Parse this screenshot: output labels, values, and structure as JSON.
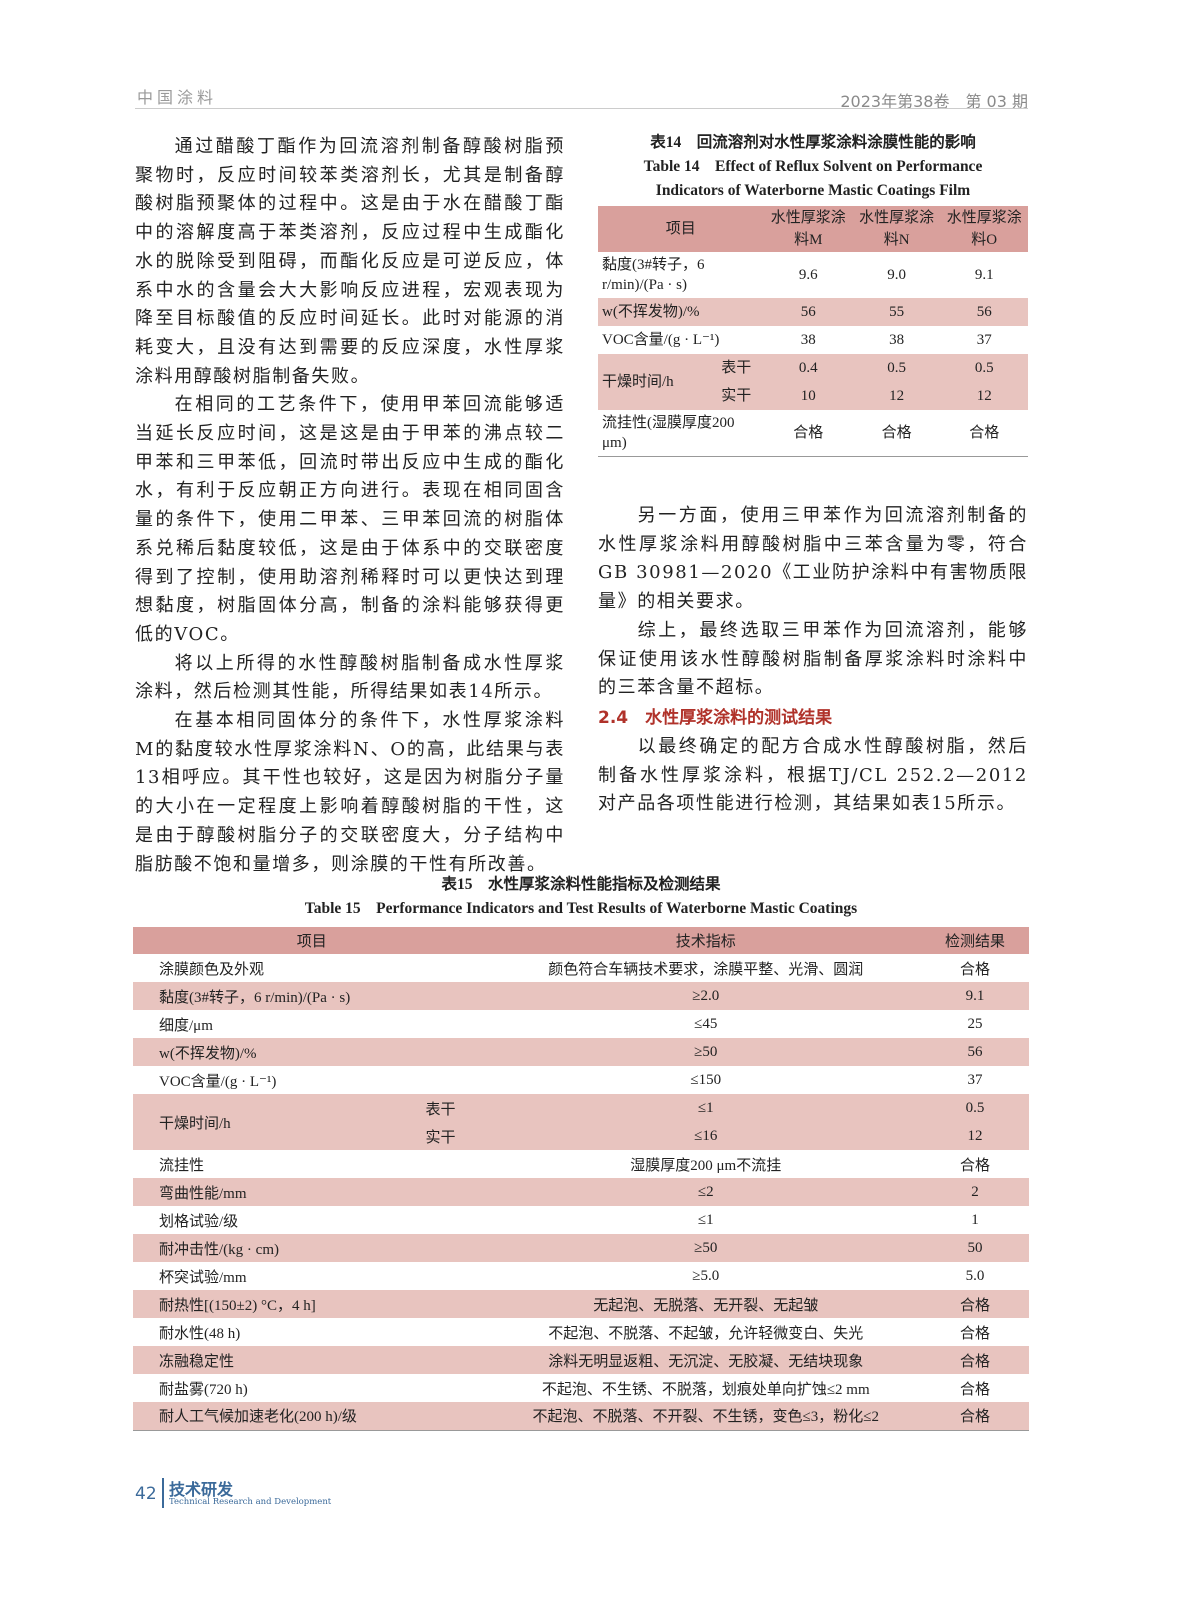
{
  "header": {
    "journal": "中国涂料",
    "issue": "2023年第38卷　第 03 期"
  },
  "left_column": [
    "通过醋酸丁酯作为回流溶剂制备醇酸树脂预聚物时，反应时间较苯类溶剂长，尤其是制备醇酸树脂预聚体的过程中。这是由于水在醋酸丁酯中的溶解度高于苯类溶剂，反应过程中生成酯化水的脱除受到阻碍，而酯化反应是可逆反应，体系中水的含量会大大影响反应进程，宏观表现为降至目标酸值的反应时间延长。此时对能源的消耗变大，且没有达到需要的反应深度，水性厚浆涂料用醇酸树脂制备失败。",
    "在相同的工艺条件下，使用甲苯回流能够适当延长反应时间，这是这是由于甲苯的沸点较二甲苯和三甲苯低，回流时带出反应中生成的酯化水，有利于反应朝正方向进行。表现在相同固含量的条件下，使用二甲苯、三甲苯回流的树脂体系兑稀后黏度较低，这是由于体系中的交联密度得到了控制，使用助溶剂稀释时可以更快达到理想黏度，树脂固体分高，制备的涂料能够获得更低的VOC。",
    "将以上所得的水性醇酸树脂制备成水性厚浆涂料，然后检测其性能，所得结果如表14所示。",
    "在基本相同固体分的条件下，水性厚浆涂料M的黏度较水性厚浆涂料N、O的高，此结果与表13相呼应。其干性也较好，这是因为树脂分子量的大小在一定程度上影响着醇酸树脂的干性，这是由于醇酸树脂分子的交联密度大，分子结构中脂肪酸不饱和量增多，则涂膜的干性有所改善。"
  ],
  "table14": {
    "caption_cn": "表14　回流溶剂对水性厚浆涂料涂膜性能的影响",
    "caption_en1": "Table 14　Effect of Reflux Solvent on Performance",
    "caption_en2": "Indicators of Waterborne Mastic Coatings Film",
    "headers": [
      "项目",
      "水性厚浆涂料M",
      "水性厚浆涂料N",
      "水性厚浆涂料O"
    ],
    "rows": [
      {
        "item": "黏度(3#转子，6 r/min)/(Pa · s)",
        "m": "9.6",
        "n": "9.0",
        "o": "9.1"
      },
      {
        "item": "w(不挥发物)/%",
        "m": "56",
        "n": "55",
        "o": "56"
      },
      {
        "item": "VOC含量/(g · L⁻¹)",
        "m": "38",
        "n": "38",
        "o": "37"
      },
      {
        "item": "干燥时间/h",
        "sub": "表干",
        "m": "0.4",
        "n": "0.5",
        "o": "0.5"
      },
      {
        "sub": "实干",
        "m": "10",
        "n": "12",
        "o": "12"
      },
      {
        "item": "流挂性(湿膜厚度200 μm)",
        "m": "合格",
        "n": "合格",
        "o": "合格"
      }
    ]
  },
  "right_column": {
    "paragraphs": [
      "另一方面，使用三甲苯作为回流溶剂制备的水性厚浆涂料用醇酸树脂中三苯含量为零，符合GB 30981—2020《工业防护涂料中有害物质限量》的相关要求。",
      "综上，最终选取三甲苯作为回流溶剂，能够保证使用该水性醇酸树脂制备厚浆涂料时涂料中的三苯含量不超标。"
    ],
    "section": "2.4　水性厚浆涂料的测试结果",
    "section_para": "以最终确定的配方合成水性醇酸树脂，然后制备水性厚浆涂料，根据TJ/CL 252.2—2012对产品各项性能进行检测，其结果如表15所示。"
  },
  "table15": {
    "caption_cn": "表15　水性厚浆涂料性能指标及检测结果",
    "caption_en": "Table 15　Performance Indicators and Test Results of Waterborne Mastic Coatings",
    "headers": [
      "项目",
      "技术指标",
      "检测结果"
    ],
    "rows": [
      {
        "item": "涂膜颜色及外观",
        "spec": "颜色符合车辆技术要求，涂膜平整、光滑、圆润",
        "result": "合格"
      },
      {
        "item": "黏度(3#转子，6 r/min)/(Pa · s)",
        "spec": "≥2.0",
        "result": "9.1"
      },
      {
        "item": "细度/μm",
        "spec": "≤45",
        "result": "25"
      },
      {
        "item": "w(不挥发物)/%",
        "spec": "≥50",
        "result": "56"
      },
      {
        "item": "VOC含量/(g · L⁻¹)",
        "spec": "≤150",
        "result": "37"
      },
      {
        "item": "干燥时间/h",
        "sub": "表干",
        "spec": "≤1",
        "result": "0.5"
      },
      {
        "sub": "实干",
        "spec": "≤16",
        "result": "12"
      },
      {
        "item": "流挂性",
        "spec": "湿膜厚度200 μm不流挂",
        "result": "合格"
      },
      {
        "item": "弯曲性能/mm",
        "spec": "≤2",
        "result": "2"
      },
      {
        "item": "划格试验/级",
        "spec": "≤1",
        "result": "1"
      },
      {
        "item": "耐冲击性/(kg · cm)",
        "spec": "≥50",
        "result": "50"
      },
      {
        "item": "杯突试验/mm",
        "spec": "≥5.0",
        "result": "5.0"
      },
      {
        "item": "耐热性[(150±2) °C，4 h]",
        "spec": "无起泡、无脱落、无开裂、无起皱",
        "result": "合格"
      },
      {
        "item": "耐水性(48 h)",
        "spec": "不起泡、不脱落、不起皱，允许轻微变白、失光",
        "result": "合格"
      },
      {
        "item": "冻融稳定性",
        "spec": "涂料无明显返粗、无沉淀、无胶凝、无结块现象",
        "result": "合格"
      },
      {
        "item": "耐盐雾(720 h)",
        "spec": "不起泡、不生锈、不脱落，划痕处单向扩蚀≤2 mm",
        "result": "合格"
      },
      {
        "item": "耐人工气候加速老化(200 h)/级",
        "spec": "不起泡、不脱落、不开裂、不生锈，变色≤3，粉化≤2",
        "result": "合格"
      }
    ]
  },
  "footer": {
    "page": "42",
    "section_cn": "技术研发",
    "section_en": "Technical Research and Development"
  },
  "colors": {
    "header_row": "#d9a09c",
    "stripe_row": "#e8c4bf",
    "section_heading": "#b0322a",
    "footer": "#3b6a9a"
  }
}
